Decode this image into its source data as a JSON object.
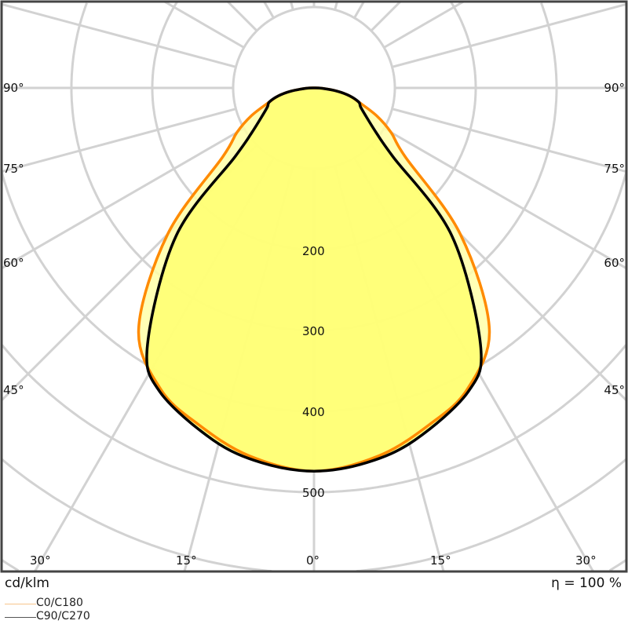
{
  "chart_data": {
    "type": "polar-line",
    "unit_label": "cd/klm",
    "efficiency_label": "η = 100 %",
    "radial_ticks": [
      100,
      200,
      300,
      400,
      500
    ],
    "radial_tick_labels": [
      "200",
      "300",
      "400",
      "500"
    ],
    "angle_labels": {
      "left": [
        "90°",
        "75°",
        "60°",
        "45°"
      ],
      "right": [
        "90°",
        "75°",
        "60°",
        "45°"
      ],
      "bottom": [
        "30°",
        "15°",
        "0°",
        "15°",
        "30°"
      ]
    },
    "grid": true,
    "legend_position": "bottom-left",
    "series": [
      {
        "name": "C0/C180",
        "color": "#ff8a00",
        "angles": [
          0,
          10,
          19,
          27,
          36,
          45,
          53,
          60,
          66,
          72.5,
          77.5,
          82,
          87,
          90
        ],
        "values": [
          474,
          462,
          440,
          418,
          369,
          256,
          141,
          110,
          85,
          58,
          45,
          29,
          10,
          0
        ]
      },
      {
        "name": "C90/C270",
        "color": "#000000",
        "angles": [
          0,
          8,
          16,
          27,
          33,
          43,
          49,
          54,
          62,
          68,
          72.5,
          77.5,
          82,
          87,
          90
        ],
        "values": [
          474,
          468,
          453,
          421,
          378,
          250,
          129,
          96,
          72,
          62,
          58,
          45,
          29,
          10,
          0
        ]
      }
    ]
  },
  "legend": {
    "c0": "C0/C180",
    "c90": "C90/C270",
    "c0_color": "#f7c58c",
    "c90_color": "#555555"
  },
  "colors": {
    "grid": "#d2d2d2",
    "fill": "#ffff70",
    "fill_outer": "#ffffa8"
  }
}
